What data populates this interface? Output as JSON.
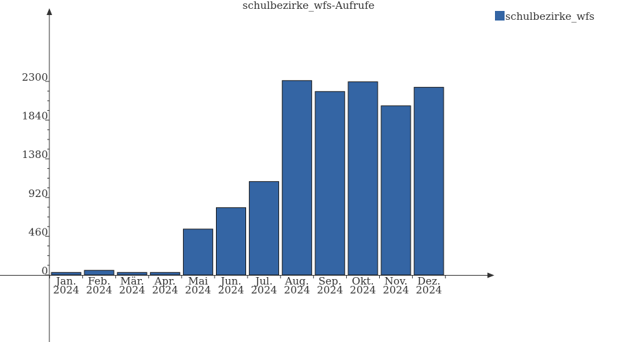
{
  "chart_data": {
    "type": "bar",
    "title": "schulbezirke_wfs-Aufrufe",
    "xlabel": "",
    "ylabel": "",
    "categories": [
      [
        "Jan.",
        "2024"
      ],
      [
        "Feb.",
        "2024"
      ],
      [
        "Mär.",
        "2024"
      ],
      [
        "Apr.",
        "2024"
      ],
      [
        "Mai",
        "2024"
      ],
      [
        "Jun.",
        "2024"
      ],
      [
        "Jul.",
        "2024"
      ],
      [
        "Aug.",
        "2024"
      ],
      [
        "Sep.",
        "2024"
      ],
      [
        "Okt.",
        "2024"
      ],
      [
        "Nov.",
        "2024"
      ],
      [
        "Dez.",
        "2024"
      ]
    ],
    "series": [
      {
        "name": "schulbezirke_wfs",
        "color": "#3465a4",
        "values": [
          30,
          55,
          30,
          30,
          545,
          800,
          1110,
          2310,
          2180,
          2295,
          2010,
          2230
        ]
      }
    ],
    "ylim": [
      0,
      2300
    ],
    "yticks": [
      0,
      460,
      920,
      1380,
      1840,
      2300
    ],
    "ytick_labels": [
      "0",
      "460",
      "920",
      "1380",
      "1840",
      "2300"
    ],
    "grid": false,
    "legend_position": "top-right"
  }
}
